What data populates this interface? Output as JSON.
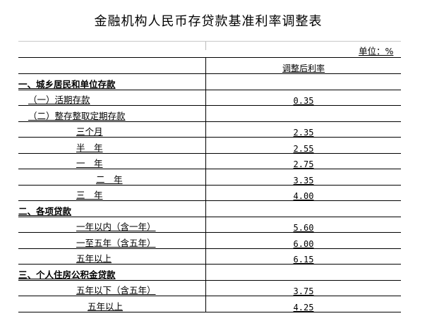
{
  "title": "金融机构人民币存贷款基准利率调整表",
  "unit": "单位：%",
  "header": {
    "rate": "调整后利率"
  },
  "rows": [
    {
      "label": "一、城乡居民和单位存款",
      "rate": "",
      "bold": true,
      "indent": 0
    },
    {
      "label": "（一）活期存款",
      "rate": "0.35",
      "indent": 14
    },
    {
      "label": "（二）整存整取定期存款",
      "rate": "",
      "indent": 14
    },
    {
      "label": "三个月",
      "rate": "2.35",
      "indent": 82
    },
    {
      "label": "半　年",
      "rate": "2.55",
      "indent": 82
    },
    {
      "label": "一　年",
      "rate": "2.75",
      "indent": 82
    },
    {
      "label": "二　年",
      "rate": "3.35",
      "indent": 110
    },
    {
      "label": "三　年",
      "rate": "4.00",
      "indent": 82
    },
    {
      "label": "二、各项贷款",
      "rate": "",
      "bold": true,
      "indent": 0
    },
    {
      "label": "一年以内（含一年）",
      "rate": "5.60",
      "indent": 82
    },
    {
      "label": "一至五年（含五年）",
      "rate": "6.00",
      "indent": 82
    },
    {
      "label": "五年以上",
      "rate": "6.15",
      "indent": 82
    },
    {
      "label": "三、个人住房公积金贷款",
      "rate": "",
      "bold": true,
      "indent": 0
    },
    {
      "label": "五年以下（含五年）",
      "rate": "3.75",
      "indent": 82
    },
    {
      "label": "五年以上",
      "rate": "4.25",
      "indent": 98
    }
  ]
}
